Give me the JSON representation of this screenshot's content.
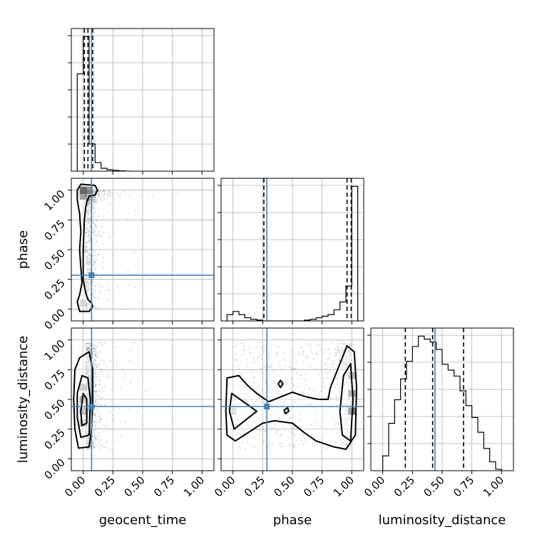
{
  "chart_data": {
    "type": "corner",
    "parameters": [
      "geocent_time",
      "phase",
      "luminosity_distance"
    ],
    "axis_range": [
      -0.1,
      1.1
    ],
    "tick_values": [
      0.0,
      0.25,
      0.5,
      0.75,
      1.0
    ],
    "tick_labels": [
      "0.00",
      "0.25",
      "0.50",
      "0.75",
      "1.00"
    ],
    "grid": true,
    "colors": {
      "truth": "#4682b4",
      "hist": "#000000",
      "grid": "#b0b0b0",
      "scatter": "#888888"
    },
    "truths": {
      "geocent_time": 0.07,
      "phase": 0.285,
      "luminosity_distance": 0.44
    },
    "histograms": [
      {
        "parameter": "geocent_time",
        "bin_edges": [
          -0.05,
          0.0,
          0.05,
          0.1,
          0.15,
          0.2,
          0.25,
          0.3,
          0.35,
          0.4
        ],
        "counts": [
          0.68,
          0.94,
          0.19,
          0.06,
          0.02,
          0.01,
          0.005,
          0.002,
          0.0
        ],
        "quantiles": [
          0.01,
          0.04,
          0.08
        ]
      },
      {
        "parameter": "phase",
        "bin_edges": [
          -0.05,
          0.0,
          0.05,
          0.1,
          0.15,
          0.2,
          0.25,
          0.3,
          0.35,
          0.4,
          0.45,
          0.5,
          0.55,
          0.6,
          0.65,
          0.7,
          0.75,
          0.8,
          0.85,
          0.9,
          0.95,
          1.0,
          1.05
        ],
        "counts": [
          0.04,
          0.06,
          0.04,
          0.02,
          0.01,
          0.005,
          0.0,
          0.0,
          0.0,
          0.0,
          0.0,
          0.0,
          0.0,
          0.005,
          0.01,
          0.02,
          0.03,
          0.04,
          0.07,
          0.12,
          0.22,
          0.85
        ],
        "quantiles": [
          0.26,
          0.96,
          0.995
        ]
      },
      {
        "parameter": "luminosity_distance",
        "bin_edges": [
          0.0,
          0.05,
          0.1,
          0.15,
          0.2,
          0.25,
          0.3,
          0.35,
          0.4,
          0.45,
          0.5,
          0.55,
          0.6,
          0.65,
          0.7,
          0.75,
          0.8,
          0.85,
          0.9,
          0.95,
          1.0
        ],
        "counts": [
          0.1,
          0.32,
          0.48,
          0.62,
          0.74,
          0.84,
          0.91,
          0.89,
          0.87,
          0.82,
          0.72,
          0.68,
          0.64,
          0.54,
          0.44,
          0.36,
          0.26,
          0.15,
          0.06,
          0.01
        ],
        "quantiles": [
          0.19,
          0.42,
          0.68
        ]
      }
    ],
    "joint_panels": [
      {
        "x": "geocent_time",
        "y": "phase",
        "density_cells": [
          {
            "x": 0.0,
            "y": 1.0,
            "d": 0.9
          },
          {
            "x": 0.05,
            "y": 1.0,
            "d": 0.6
          },
          {
            "x": 0.0,
            "y": 0.95,
            "d": 0.55
          },
          {
            "x": 0.0,
            "y": 0.05,
            "d": 0.2
          },
          {
            "x": 0.0,
            "y": 0.5,
            "d": 0.1
          }
        ],
        "contours": [
          [
            [
              -0.02,
              1.05
            ],
            [
              0.1,
              1.04
            ],
            [
              0.12,
              1.0
            ],
            [
              0.1,
              0.96
            ],
            [
              0.05,
              0.95
            ],
            [
              0.03,
              0.9
            ],
            [
              0.02,
              0.85
            ],
            [
              0.01,
              0.75
            ],
            [
              0.0,
              0.5
            ],
            [
              0.0,
              0.25
            ],
            [
              0.02,
              0.14
            ],
            [
              0.04,
              0.08
            ],
            [
              0.07,
              0.05
            ],
            [
              0.08,
              0.02
            ],
            [
              0.05,
              -0.02
            ],
            [
              -0.03,
              -0.02
            ],
            [
              -0.05,
              0.06
            ],
            [
              -0.03,
              0.12
            ],
            [
              -0.01,
              0.22
            ],
            [
              -0.02,
              0.35
            ],
            [
              -0.03,
              0.5
            ],
            [
              -0.02,
              0.65
            ],
            [
              -0.03,
              0.8
            ],
            [
              -0.05,
              0.92
            ],
            [
              -0.05,
              1.0
            ]
          ]
        ]
      },
      {
        "x": "geocent_time",
        "y": "luminosity_distance",
        "density_cells": [
          {
            "x": 0.0,
            "y": 0.5,
            "d": 0.7
          },
          {
            "x": 0.0,
            "y": 0.4,
            "d": 0.8
          },
          {
            "x": 0.0,
            "y": 0.3,
            "d": 0.55
          },
          {
            "x": 0.0,
            "y": 0.6,
            "d": 0.4
          }
        ],
        "contours": [
          [
            [
              -0.03,
              0.85
            ],
            [
              0.05,
              0.9
            ],
            [
              0.08,
              0.75
            ],
            [
              0.08,
              0.5
            ],
            [
              0.07,
              0.25
            ],
            [
              0.05,
              0.1
            ],
            [
              -0.04,
              0.09
            ],
            [
              -0.07,
              0.25
            ],
            [
              -0.08,
              0.5
            ],
            [
              -0.07,
              0.75
            ]
          ],
          [
            [
              -0.01,
              0.7
            ],
            [
              0.04,
              0.68
            ],
            [
              0.06,
              0.5
            ],
            [
              0.05,
              0.2
            ],
            [
              -0.02,
              0.18
            ],
            [
              -0.05,
              0.35
            ],
            [
              -0.05,
              0.55
            ]
          ],
          [
            [
              0.0,
              0.55
            ],
            [
              0.03,
              0.5
            ],
            [
              0.03,
              0.3
            ],
            [
              -0.01,
              0.28
            ],
            [
              -0.02,
              0.4
            ]
          ]
        ]
      },
      {
        "x": "phase",
        "y": "luminosity_distance",
        "density_cells": [
          {
            "x": 1.0,
            "y": 0.4,
            "d": 0.85
          },
          {
            "x": 1.0,
            "y": 0.55,
            "d": 0.6
          },
          {
            "x": 1.0,
            "y": 0.7,
            "d": 0.4
          },
          {
            "x": 0.0,
            "y": 0.4,
            "d": 0.25
          }
        ],
        "contours": [
          [
            [
              0.02,
              0.15
            ],
            [
              0.25,
              0.3
            ],
            [
              0.35,
              0.32
            ],
            [
              0.5,
              0.3
            ],
            [
              0.6,
              0.22
            ],
            [
              0.7,
              0.15
            ],
            [
              0.85,
              0.1
            ],
            [
              0.95,
              0.08
            ],
            [
              1.03,
              0.2
            ],
            [
              1.04,
              0.6
            ],
            [
              1.02,
              0.9
            ],
            [
              0.96,
              0.95
            ],
            [
              0.9,
              0.8
            ],
            [
              0.82,
              0.6
            ],
            [
              0.8,
              0.5
            ],
            [
              0.72,
              0.5
            ],
            [
              0.62,
              0.52
            ],
            [
              0.5,
              0.56
            ],
            [
              0.4,
              0.52
            ],
            [
              0.3,
              0.48
            ],
            [
              0.2,
              0.55
            ],
            [
              0.12,
              0.62
            ],
            [
              0.05,
              0.7
            ],
            [
              -0.05,
              0.68
            ],
            [
              -0.06,
              0.4
            ],
            [
              -0.05,
              0.2
            ]
          ],
          [
            [
              0.01,
              0.25
            ],
            [
              0.2,
              0.4
            ],
            [
              -0.01,
              0.55
            ],
            [
              -0.03,
              0.4
            ]
          ],
          [
            [
              0.92,
              0.2
            ],
            [
              0.99,
              0.15
            ],
            [
              1.01,
              0.5
            ],
            [
              0.99,
              0.8
            ],
            [
              0.93,
              0.7
            ],
            [
              0.9,
              0.4
            ]
          ],
          [
            [
              0.4,
              0.6
            ],
            [
              0.42,
              0.63
            ],
            [
              0.4,
              0.66
            ],
            [
              0.38,
              0.63
            ]
          ],
          [
            [
              0.44,
              0.38
            ],
            [
              0.47,
              0.4
            ],
            [
              0.46,
              0.43
            ],
            [
              0.43,
              0.41
            ]
          ]
        ]
      }
    ],
    "xlabels": [
      "geocent_time",
      "phase",
      "luminosity_distance"
    ],
    "ylabels": [
      "",
      "phase",
      "luminosity_distance"
    ]
  }
}
